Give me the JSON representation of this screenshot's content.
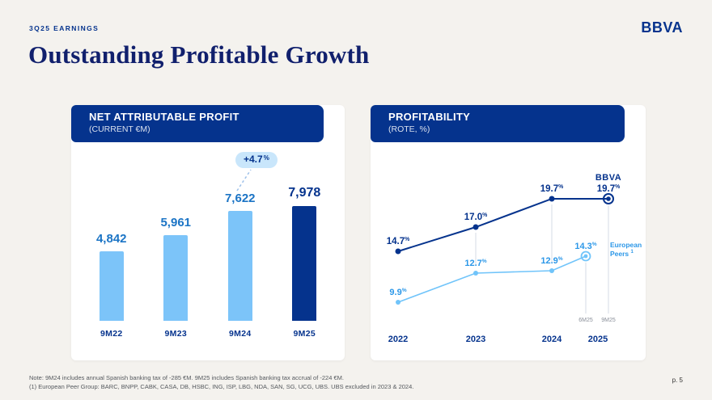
{
  "header": {
    "eyebrow": "3Q25 EARNINGS",
    "logo": "BBVA",
    "title": "Outstanding Profitable Growth"
  },
  "footer": {
    "note1": "Note: 9M24 includes annual Spanish banking tax of -285 €M. 9M25 includes Spanish banking tax accrual of -224 €M.",
    "note2": "(1) European Peer Group: BARC, BNPP, CABK, CASA, DB, HSBC, ING, ISP, LBG, NDA, SAN, SG, UCG, UBS. UBS excluded in 2023 & 2024.",
    "page": "p. 5"
  },
  "colors": {
    "navy": "#05338D",
    "light_blue": "#7CC4F9",
    "peer_line": "#70C4FA",
    "peer_text": "#2B97E8",
    "value_blue": "#1B74C5",
    "badge_bg": "#C9E6FB",
    "background": "#F4F2EE",
    "gap_line": "#D5DBE6",
    "muted_text": "#8A8F99"
  },
  "chart_data": [
    {
      "type": "bar",
      "title": "NET ATTRIBUTABLE PROFIT",
      "subtitle": "(CURRENT €M)",
      "categories": [
        "9M22",
        "9M23",
        "9M24",
        "9M25"
      ],
      "values": [
        4842,
        5961,
        7622,
        7978
      ],
      "value_labels": [
        "4,842",
        "5,961",
        "7,622",
        "7,978"
      ],
      "highlight_index": 3,
      "growth_badge": "+4.7%",
      "ylim": [
        0,
        8500
      ],
      "grid": false,
      "legend_position": "none"
    },
    {
      "type": "line",
      "title": "PROFITABILITY",
      "subtitle": "(ROTE, %)",
      "categories": [
        "2022",
        "2023",
        "2024",
        "2025"
      ],
      "series": [
        {
          "name": "BBVA",
          "values": [
            14.7,
            17.0,
            19.7,
            19.7
          ],
          "labels": [
            "14.7%",
            "17.0%",
            "19.7%",
            "19.7%"
          ]
        },
        {
          "name": "European Peers (1)",
          "values": [
            9.9,
            12.7,
            12.9,
            14.3
          ],
          "labels": [
            "9.9%",
            "12.7%",
            "12.9%",
            "14.3%"
          ]
        }
      ],
      "series_label": "BBVA",
      "legend": {
        "line1": "European",
        "line2": "Peers",
        "footnote": "1"
      },
      "period_labels": [
        "6M25",
        "9M25"
      ],
      "ylim": [
        8,
        22
      ],
      "grid": false,
      "legend_position": "right"
    }
  ]
}
